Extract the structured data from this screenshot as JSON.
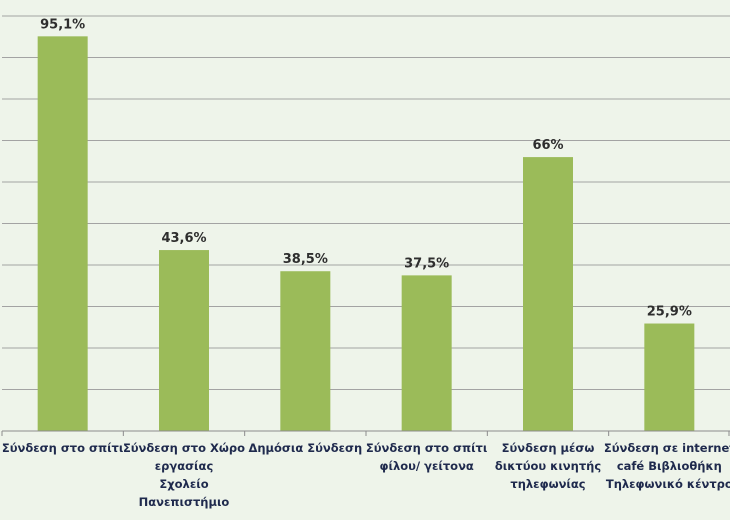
{
  "chart_data": {
    "type": "bar",
    "title": "",
    "xlabel": "",
    "ylabel": "",
    "categories": [
      [
        "Σύνδεση στο σπίτι"
      ],
      [
        "Σύνδεση στο Χώρο",
        "εργασίας",
        "Σχολείο",
        "Πανεπιστήμιο"
      ],
      [
        "Δημόσια Σύνδεση"
      ],
      [
        "Σύνδεση στο σπίτι",
        "φίλου/ γείτονα"
      ],
      [
        "Σύνδεση μέσω",
        "δικτύου κινητής",
        "τηλεφωνίας"
      ],
      [
        "Σύνδεση σε internet",
        "café Βιβλιοθήκη",
        "Τηλεφωνικό κέντρο"
      ]
    ],
    "values": [
      95.1,
      43.6,
      38.5,
      37.5,
      66,
      25.9
    ],
    "value_labels": [
      "95,1%",
      "43,6%",
      "38,5%",
      "37,5%",
      "66%",
      "25,9%"
    ],
    "ylim": [
      0,
      100
    ],
    "grid": true,
    "legend": "none",
    "bar_color": "#9bbb59",
    "background_color": "#eef4ea",
    "grid_color": "#a3a3a3"
  }
}
